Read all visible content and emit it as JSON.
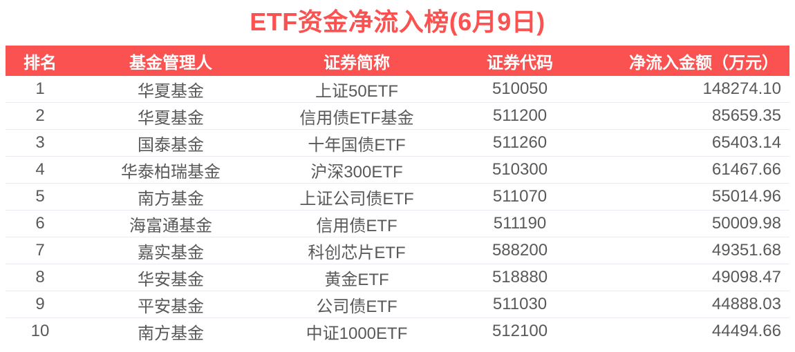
{
  "chart_data": {
    "type": "table",
    "title": "ETF资金净流入榜(6月9日)",
    "columns": [
      "排名",
      "基金管理人",
      "证券简称",
      "证券代码",
      "净流入金额（万元）"
    ],
    "rows": [
      [
        "1",
        "华夏基金",
        "上证50ETF",
        "510050",
        "148274.10"
      ],
      [
        "2",
        "华夏基金",
        "信用债ETF基金",
        "511200",
        "85659.35"
      ],
      [
        "3",
        "国泰基金",
        "十年国债ETF",
        "511260",
        "65403.14"
      ],
      [
        "4",
        "华泰柏瑞基金",
        "沪深300ETF",
        "510300",
        "61467.66"
      ],
      [
        "5",
        "南方基金",
        "上证公司债ETF",
        "511070",
        "55014.96"
      ],
      [
        "6",
        "海富通基金",
        "信用债ETF",
        "511190",
        "50009.98"
      ],
      [
        "7",
        "嘉实基金",
        "科创芯片ETF",
        "588200",
        "49351.68"
      ],
      [
        "8",
        "华安基金",
        "黄金ETF",
        "518880",
        "49098.47"
      ],
      [
        "9",
        "平安基金",
        "公司债ETF",
        "511030",
        "44888.03"
      ],
      [
        "10",
        "南方基金",
        "中证1000ETF",
        "512100",
        "44494.66"
      ]
    ]
  },
  "colors": {
    "accent": "#fa5151",
    "header_text": "#ffffff",
    "body_text": "#595959",
    "divider": "#e9ebf2"
  }
}
